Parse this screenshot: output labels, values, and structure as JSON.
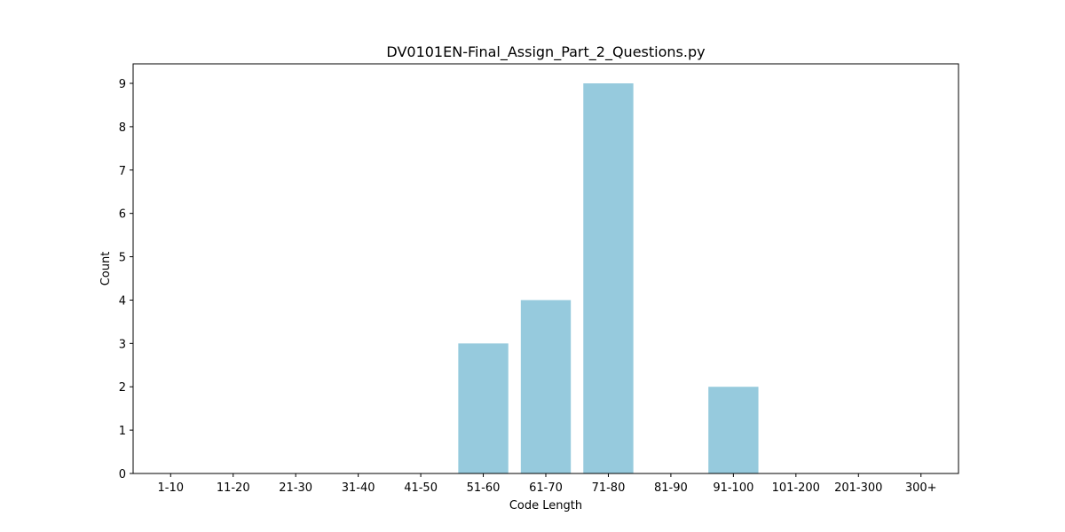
{
  "chart_data": {
    "type": "bar",
    "title": "DV0101EN-Final_Assign_Part_2_Questions.py",
    "xlabel": "Code Length",
    "ylabel": "Count",
    "categories": [
      "1-10",
      "11-20",
      "21-30",
      "31-40",
      "41-50",
      "51-60",
      "61-70",
      "71-80",
      "81-90",
      "91-100",
      "101-200",
      "201-300",
      "300+"
    ],
    "values": [
      0,
      0,
      0,
      0,
      0,
      3,
      4,
      9,
      0,
      2,
      0,
      0,
      0
    ],
    "ylim": [
      0,
      9.45
    ],
    "yticks": [
      "0",
      "1",
      "2",
      "3",
      "4",
      "5",
      "6",
      "7",
      "8",
      "9"
    ],
    "grid": false,
    "bar_color": "#96cadd"
  }
}
